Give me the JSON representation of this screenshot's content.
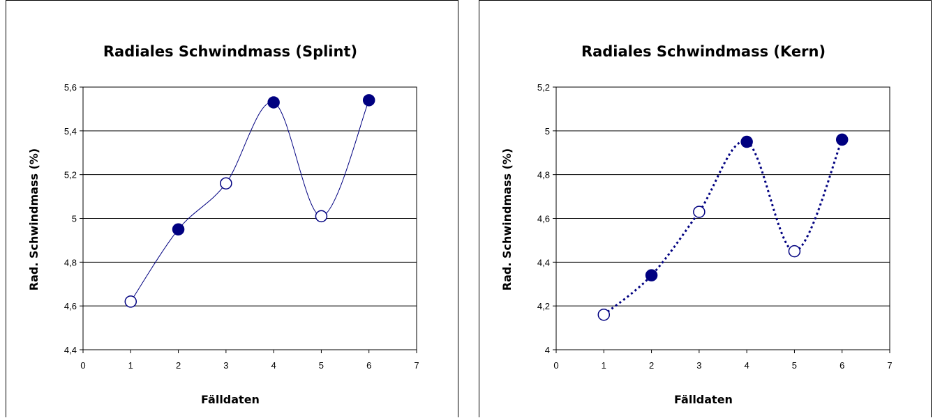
{
  "chart_data": [
    {
      "type": "scatter",
      "title": "Radiales Schwindmass (Splint)",
      "xlabel": "Fälldaten",
      "ylabel": "Rad. Schwindmass (%)",
      "xlim": [
        0,
        7
      ],
      "ylim": [
        4.4,
        5.6
      ],
      "xticks": [
        "0",
        "1",
        "2",
        "3",
        "4",
        "5",
        "6",
        "7"
      ],
      "yticks": [
        "4,4",
        "4,6",
        "4,8",
        "5",
        "5,2",
        "5,4",
        "5,6"
      ],
      "grid": "horizontal",
      "line_style": "solid-smoothed",
      "line_color": "#000080",
      "marker_color": "#000080",
      "points": [
        {
          "x": 1,
          "y": 4.62,
          "marker": "open"
        },
        {
          "x": 2,
          "y": 4.95,
          "marker": "filled"
        },
        {
          "x": 3,
          "y": 5.16,
          "marker": "open"
        },
        {
          "x": 4,
          "y": 5.53,
          "marker": "filled"
        },
        {
          "x": 5,
          "y": 5.01,
          "marker": "open"
        },
        {
          "x": 6,
          "y": 5.54,
          "marker": "filled"
        }
      ]
    },
    {
      "type": "scatter",
      "title": "Radiales Schwindmass (Kern)",
      "xlabel": "Fälldaten",
      "ylabel": "Rad. Schwindmass (%)",
      "xlim": [
        0,
        7
      ],
      "ylim": [
        4,
        5.2
      ],
      "xticks": [
        "0",
        "1",
        "2",
        "3",
        "4",
        "5",
        "6",
        "7"
      ],
      "yticks": [
        "4",
        "4,2",
        "4,4",
        "4,6",
        "4,8",
        "5",
        "5,2"
      ],
      "grid": "horizontal",
      "line_style": "dotted-smoothed",
      "line_color": "#000080",
      "marker_color": "#000080",
      "points": [
        {
          "x": 1,
          "y": 4.16,
          "marker": "open"
        },
        {
          "x": 2,
          "y": 4.34,
          "marker": "filled"
        },
        {
          "x": 3,
          "y": 4.63,
          "marker": "open"
        },
        {
          "x": 4,
          "y": 4.95,
          "marker": "filled"
        },
        {
          "x": 5,
          "y": 4.45,
          "marker": "open"
        },
        {
          "x": 6,
          "y": 4.96,
          "marker": "filled"
        }
      ]
    }
  ]
}
